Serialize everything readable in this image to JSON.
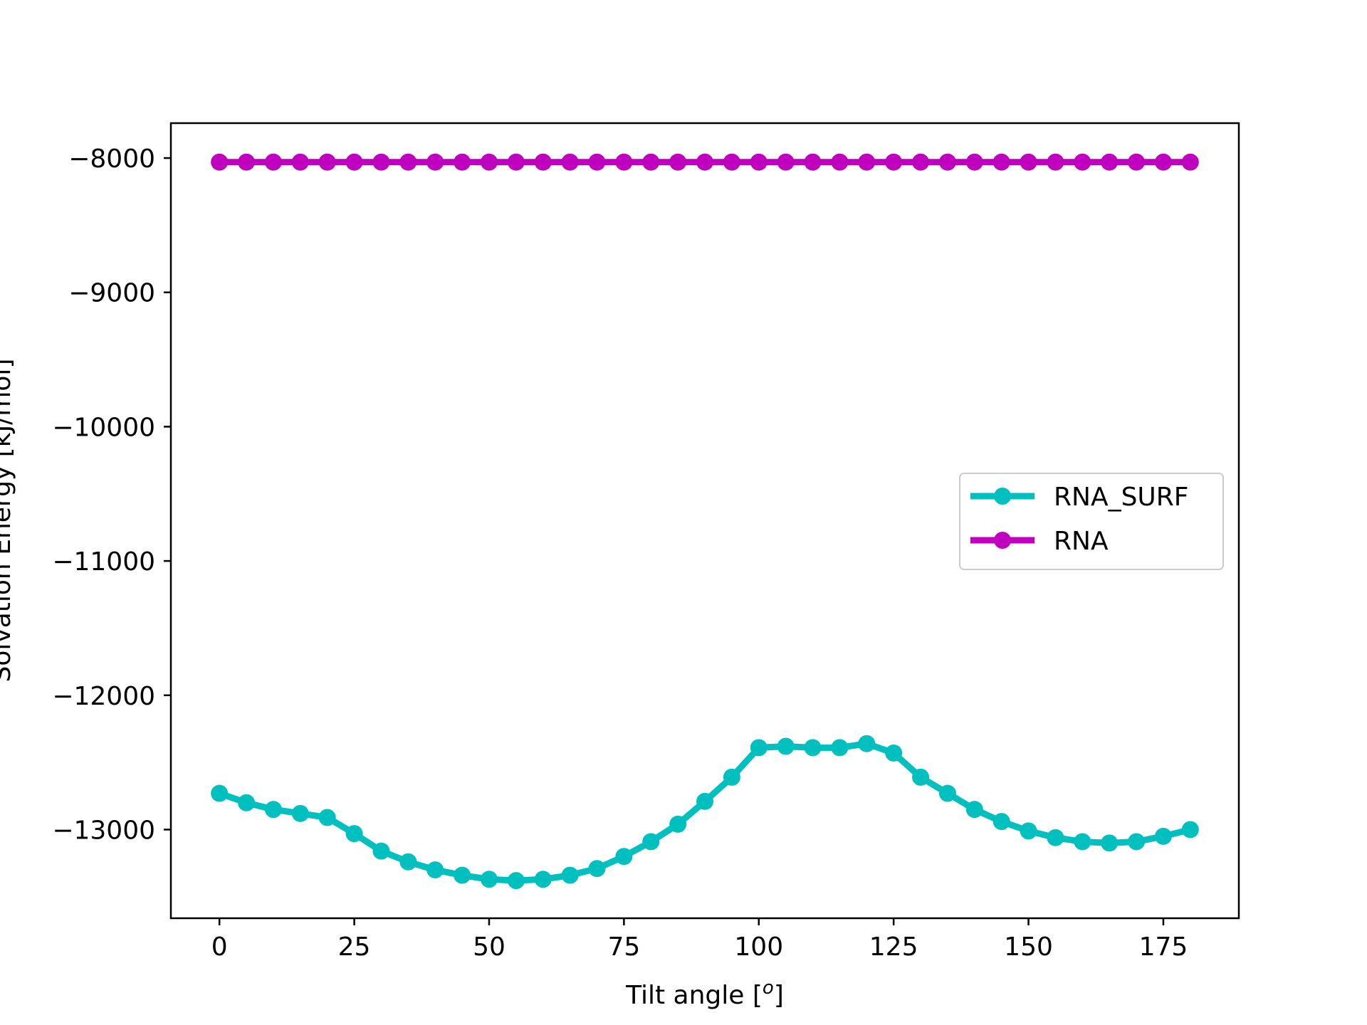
{
  "chart_data": {
    "type": "line",
    "xlabel": "Tilt angle [",
    "xlabel_sup": "o",
    "xlabel_end": "]",
    "ylabel": "Solvation Energy [kJ/mol]",
    "xlim": [
      -9,
      189
    ],
    "ylim": [
      -13660,
      -7740
    ],
    "xticks": [
      0,
      25,
      50,
      75,
      100,
      125,
      150,
      175
    ],
    "yticks": [
      -8000,
      -9000,
      -10000,
      -11000,
      -12000,
      -13000
    ],
    "ytick_labels": [
      "−8000",
      "−9000",
      "−10000",
      "−11000",
      "−12000",
      "−13000"
    ],
    "grid": false,
    "legend_position": "center-right",
    "x": [
      0,
      5,
      10,
      15,
      20,
      25,
      30,
      35,
      40,
      45,
      50,
      55,
      60,
      65,
      70,
      75,
      80,
      85,
      90,
      95,
      100,
      105,
      110,
      115,
      120,
      125,
      130,
      135,
      140,
      145,
      150,
      155,
      160,
      165,
      170,
      175,
      180
    ],
    "series": [
      {
        "name": "RNA_SURF",
        "color": "#00bfbf",
        "values": [
          -12730,
          -12800,
          -12850,
          -12880,
          -12910,
          -13030,
          -13160,
          -13240,
          -13300,
          -13340,
          -13370,
          -13380,
          -13370,
          -13340,
          -13290,
          -13200,
          -13090,
          -12960,
          -12790,
          -12610,
          -12390,
          -12380,
          -12390,
          -12390,
          -12360,
          -12430,
          -12610,
          -12730,
          -12850,
          -12940,
          -13010,
          -13060,
          -13090,
          -13100,
          -13090,
          -13050,
          -13000
        ]
      },
      {
        "name": "RNA",
        "color": "#bf00bf",
        "values": [
          -8030,
          -8030,
          -8030,
          -8030,
          -8030,
          -8030,
          -8030,
          -8030,
          -8030,
          -8030,
          -8030,
          -8030,
          -8030,
          -8030,
          -8030,
          -8030,
          -8030,
          -8030,
          -8030,
          -8030,
          -8030,
          -8030,
          -8030,
          -8030,
          -8030,
          -8030,
          -8030,
          -8030,
          -8030,
          -8030,
          -8030,
          -8030,
          -8030,
          -8030,
          -8030,
          -8030,
          -8030
        ]
      }
    ]
  }
}
